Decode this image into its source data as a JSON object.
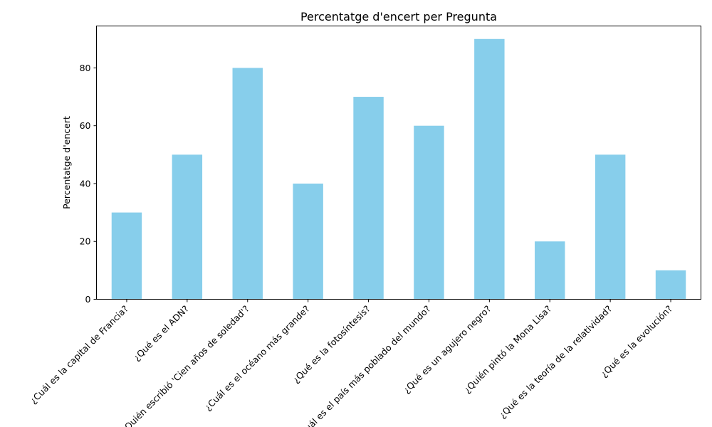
{
  "chart_data": {
    "type": "bar",
    "title": "Percentatge d'encert per Pregunta",
    "xlabel": "",
    "ylabel": "Percentatge d'encert",
    "categories": [
      "¿Cuál es la capital de Francia?",
      "¿Qué es el ADN?",
      "¿Quién escribió 'Cien años de soledad'?",
      "¿Cuál es el océano más grande?",
      "¿Qué es la fotosíntesis?",
      "¿Cuál es el país más poblado del mundo?",
      "¿Qué es un agujero negro?",
      "¿Quién pintó la Mona Lisa?",
      "¿Qué es la teoría de la relatividad?",
      "¿Qué es la evolución?"
    ],
    "values": [
      30,
      50,
      80,
      40,
      70,
      60,
      90,
      20,
      50,
      10
    ],
    "ylim": [
      0,
      94.5
    ],
    "yticks": [
      "0",
      "20",
      "40",
      "60",
      "80"
    ],
    "grid": false,
    "bar_color": "#87ceeb"
  }
}
